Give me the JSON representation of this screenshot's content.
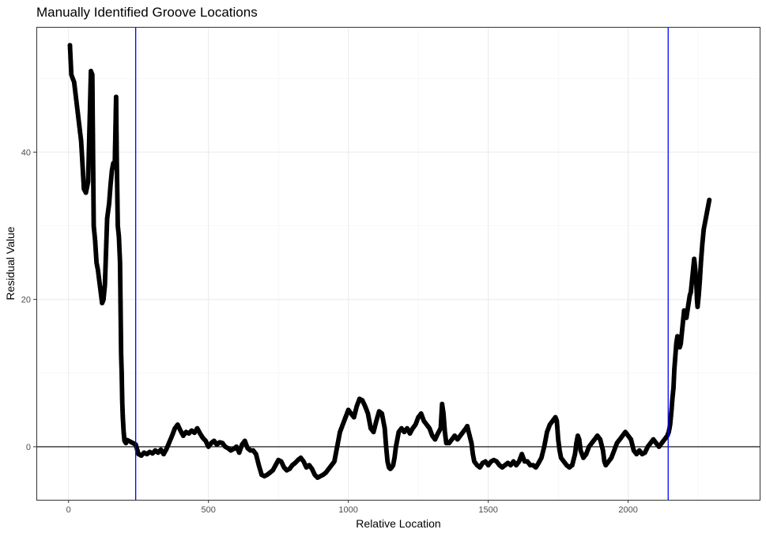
{
  "chart_data": {
    "type": "scatter",
    "title": "Manually Identified Groove Locations",
    "xlabel": "Relative Location",
    "ylabel": "Residual Value",
    "xlim": [
      -115,
      2470
    ],
    "ylim": [
      -7.2,
      57
    ],
    "x_ticks": [
      0,
      500,
      1000,
      1500,
      2000
    ],
    "y_ticks": [
      0,
      20,
      40
    ],
    "grid": true,
    "theme": "black-and-white",
    "point_color": "#000000",
    "vlines": [
      {
        "x": 240,
        "color": "#0000ff"
      },
      {
        "x": 2143,
        "color": "#0000ff"
      }
    ],
    "hlines": [
      {
        "y": 0,
        "color": "#000000"
      }
    ],
    "profile": [
      [
        5,
        54.5
      ],
      [
        10,
        50.5
      ],
      [
        20,
        49.5
      ],
      [
        45,
        41.5
      ],
      [
        55,
        35
      ],
      [
        62,
        34.5
      ],
      [
        70,
        36
      ],
      [
        80,
        51
      ],
      [
        85,
        50.5
      ],
      [
        90,
        30
      ],
      [
        95,
        28
      ],
      [
        100,
        25
      ],
      [
        105,
        24
      ],
      [
        110,
        22.5
      ],
      [
        115,
        21
      ],
      [
        120,
        19.5
      ],
      [
        125,
        20
      ],
      [
        130,
        22
      ],
      [
        138,
        31
      ],
      [
        145,
        33
      ],
      [
        150,
        35.5
      ],
      [
        155,
        37.5
      ],
      [
        160,
        38.5
      ],
      [
        165,
        38
      ],
      [
        170,
        47.5
      ],
      [
        172,
        40
      ],
      [
        176,
        30
      ],
      [
        180,
        28.5
      ],
      [
        184,
        25
      ],
      [
        188,
        12.5
      ],
      [
        190,
        10
      ],
      [
        192,
        6
      ],
      [
        194,
        4
      ],
      [
        197,
        2
      ],
      [
        200,
        0.8
      ],
      [
        205,
        0.5
      ],
      [
        210,
        0.9
      ],
      [
        220,
        0.7
      ],
      [
        230,
        0.5
      ],
      [
        240,
        0.3
      ],
      [
        250,
        -1.0
      ],
      [
        260,
        -1.2
      ],
      [
        270,
        -0.8
      ],
      [
        280,
        -1.0
      ],
      [
        290,
        -0.7
      ],
      [
        300,
        -0.9
      ],
      [
        310,
        -0.5
      ],
      [
        320,
        -0.8
      ],
      [
        330,
        -0.4
      ],
      [
        340,
        -1.0
      ],
      [
        350,
        -0.3
      ],
      [
        360,
        0.6
      ],
      [
        370,
        1.5
      ],
      [
        380,
        2.5
      ],
      [
        390,
        3.0
      ],
      [
        400,
        2.2
      ],
      [
        410,
        1.5
      ],
      [
        420,
        2.0
      ],
      [
        430,
        1.8
      ],
      [
        440,
        2.2
      ],
      [
        450,
        1.9
      ],
      [
        460,
        2.5
      ],
      [
        470,
        1.8
      ],
      [
        480,
        1.2
      ],
      [
        490,
        0.8
      ],
      [
        500,
        0.0
      ],
      [
        510,
        0.5
      ],
      [
        520,
        0.8
      ],
      [
        530,
        0.3
      ],
      [
        540,
        0.6
      ],
      [
        550,
        0.5
      ],
      [
        560,
        0.0
      ],
      [
        570,
        -0.2
      ],
      [
        580,
        -0.5
      ],
      [
        590,
        -0.3
      ],
      [
        600,
        0.0
      ],
      [
        610,
        -0.8
      ],
      [
        620,
        0.3
      ],
      [
        630,
        0.8
      ],
      [
        640,
        -0.2
      ],
      [
        650,
        -0.5
      ],
      [
        660,
        -0.5
      ],
      [
        670,
        -1.0
      ],
      [
        680,
        -2.5
      ],
      [
        690,
        -3.8
      ],
      [
        700,
        -4.0
      ],
      [
        710,
        -3.8
      ],
      [
        720,
        -3.5
      ],
      [
        730,
        -3.2
      ],
      [
        740,
        -2.5
      ],
      [
        750,
        -1.8
      ],
      [
        760,
        -2.0
      ],
      [
        770,
        -2.8
      ],
      [
        780,
        -3.2
      ],
      [
        790,
        -3.0
      ],
      [
        800,
        -2.5
      ],
      [
        810,
        -2.2
      ],
      [
        820,
        -1.8
      ],
      [
        830,
        -1.5
      ],
      [
        840,
        -2.0
      ],
      [
        850,
        -2.8
      ],
      [
        860,
        -2.5
      ],
      [
        870,
        -3.0
      ],
      [
        880,
        -3.8
      ],
      [
        890,
        -4.2
      ],
      [
        900,
        -4.0
      ],
      [
        910,
        -3.8
      ],
      [
        920,
        -3.5
      ],
      [
        930,
        -3.0
      ],
      [
        940,
        -2.5
      ],
      [
        950,
        -2.0
      ],
      [
        955,
        -1.0
      ],
      [
        960,
        0.0
      ],
      [
        965,
        1.0
      ],
      [
        970,
        2.0
      ],
      [
        975,
        2.5
      ],
      [
        980,
        3.0
      ],
      [
        985,
        3.5
      ],
      [
        990,
        4.0
      ],
      [
        995,
        4.5
      ],
      [
        1000,
        5.0
      ],
      [
        1010,
        4.5
      ],
      [
        1020,
        4.0
      ],
      [
        1030,
        5.5
      ],
      [
        1040,
        6.5
      ],
      [
        1050,
        6.3
      ],
      [
        1060,
        5.5
      ],
      [
        1070,
        4.5
      ],
      [
        1080,
        2.5
      ],
      [
        1090,
        2.0
      ],
      [
        1100,
        3.5
      ],
      [
        1110,
        4.8
      ],
      [
        1120,
        4.5
      ],
      [
        1130,
        2.5
      ],
      [
        1135,
        0.0
      ],
      [
        1140,
        -2.0
      ],
      [
        1145,
        -2.8
      ],
      [
        1150,
        -3.0
      ],
      [
        1155,
        -2.8
      ],
      [
        1160,
        -2.5
      ],
      [
        1165,
        -1.5
      ],
      [
        1170,
        0.0
      ],
      [
        1175,
        1.0
      ],
      [
        1180,
        2.0
      ],
      [
        1190,
        2.5
      ],
      [
        1200,
        2.0
      ],
      [
        1210,
        2.5
      ],
      [
        1220,
        1.8
      ],
      [
        1230,
        2.5
      ],
      [
        1240,
        3.0
      ],
      [
        1250,
        4.0
      ],
      [
        1260,
        4.5
      ],
      [
        1270,
        3.5
      ],
      [
        1280,
        3.0
      ],
      [
        1290,
        2.5
      ],
      [
        1300,
        1.5
      ],
      [
        1310,
        1.0
      ],
      [
        1320,
        1.8
      ],
      [
        1330,
        2.5
      ],
      [
        1335,
        5.8
      ],
      [
        1340,
        4.5
      ],
      [
        1345,
        2.0
      ],
      [
        1350,
        0.5
      ],
      [
        1360,
        0.5
      ],
      [
        1370,
        1.0
      ],
      [
        1380,
        1.5
      ],
      [
        1390,
        1.0
      ],
      [
        1400,
        1.5
      ],
      [
        1410,
        2.0
      ],
      [
        1420,
        2.5
      ],
      [
        1425,
        2.8
      ],
      [
        1430,
        2.0
      ],
      [
        1440,
        0.5
      ],
      [
        1445,
        -1.0
      ],
      [
        1450,
        -2.0
      ],
      [
        1460,
        -2.5
      ],
      [
        1470,
        -2.8
      ],
      [
        1480,
        -2.2
      ],
      [
        1490,
        -2.0
      ],
      [
        1500,
        -2.5
      ],
      [
        1510,
        -2.0
      ],
      [
        1520,
        -1.8
      ],
      [
        1530,
        -2.0
      ],
      [
        1540,
        -2.5
      ],
      [
        1550,
        -2.8
      ],
      [
        1560,
        -2.5
      ],
      [
        1570,
        -2.2
      ],
      [
        1580,
        -2.5
      ],
      [
        1590,
        -2.0
      ],
      [
        1600,
        -2.5
      ],
      [
        1610,
        -2.0
      ],
      [
        1620,
        -1.0
      ],
      [
        1630,
        -2.0
      ],
      [
        1640,
        -2.0
      ],
      [
        1650,
        -2.5
      ],
      [
        1660,
        -2.5
      ],
      [
        1670,
        -2.8
      ],
      [
        1680,
        -2.2
      ],
      [
        1690,
        -1.5
      ],
      [
        1700,
        0.0
      ],
      [
        1710,
        2.0
      ],
      [
        1720,
        3.0
      ],
      [
        1730,
        3.5
      ],
      [
        1740,
        4.0
      ],
      [
        1745,
        3.5
      ],
      [
        1750,
        1.0
      ],
      [
        1755,
        -0.5
      ],
      [
        1760,
        -1.5
      ],
      [
        1770,
        -2.0
      ],
      [
        1780,
        -2.5
      ],
      [
        1790,
        -2.8
      ],
      [
        1800,
        -2.5
      ],
      [
        1810,
        -1.0
      ],
      [
        1815,
        0.5
      ],
      [
        1820,
        1.5
      ],
      [
        1825,
        1.0
      ],
      [
        1830,
        -0.5
      ],
      [
        1840,
        -1.5
      ],
      [
        1850,
        -1.0
      ],
      [
        1860,
        0.0
      ],
      [
        1870,
        0.5
      ],
      [
        1880,
        1.0
      ],
      [
        1890,
        1.5
      ],
      [
        1900,
        1.0
      ],
      [
        1910,
        -0.5
      ],
      [
        1915,
        -2.0
      ],
      [
        1920,
        -2.5
      ],
      [
        1930,
        -2.0
      ],
      [
        1940,
        -1.5
      ],
      [
        1950,
        -0.5
      ],
      [
        1960,
        0.5
      ],
      [
        1970,
        1.0
      ],
      [
        1980,
        1.5
      ],
      [
        1990,
        2.0
      ],
      [
        2000,
        1.5
      ],
      [
        2010,
        1.0
      ],
      [
        2020,
        -0.5
      ],
      [
        2030,
        -1.0
      ],
      [
        2040,
        -0.5
      ],
      [
        2050,
        -1.0
      ],
      [
        2060,
        -0.8
      ],
      [
        2070,
        0.0
      ],
      [
        2080,
        0.5
      ],
      [
        2090,
        1.0
      ],
      [
        2100,
        0.5
      ],
      [
        2110,
        0.0
      ],
      [
        2120,
        0.5
      ],
      [
        2130,
        1.0
      ],
      [
        2140,
        1.5
      ],
      [
        2145,
        2.0
      ],
      [
        2150,
        3.0
      ],
      [
        2155,
        5.0
      ],
      [
        2158,
        6.5
      ],
      [
        2162,
        8.0
      ],
      [
        2165,
        10.5
      ],
      [
        2168,
        12.0
      ],
      [
        2172,
        14.0
      ],
      [
        2176,
        15.0
      ],
      [
        2180,
        14.5
      ],
      [
        2184,
        13.5
      ],
      [
        2188,
        14.0
      ],
      [
        2192,
        15.5
      ],
      [
        2196,
        17.0
      ],
      [
        2200,
        18.5
      ],
      [
        2204,
        18.0
      ],
      [
        2208,
        17.5
      ],
      [
        2212,
        18.5
      ],
      [
        2216,
        19.5
      ],
      [
        2220,
        20.5
      ],
      [
        2224,
        21.0
      ],
      [
        2228,
        22.5
      ],
      [
        2232,
        24.0
      ],
      [
        2236,
        25.5
      ],
      [
        2240,
        24.0
      ],
      [
        2244,
        22.0
      ],
      [
        2246,
        20.0
      ],
      [
        2248,
        19.0
      ],
      [
        2252,
        20.5
      ],
      [
        2256,
        22.5
      ],
      [
        2260,
        25.0
      ],
      [
        2265,
        27.5
      ],
      [
        2270,
        29.5
      ],
      [
        2275,
        30.5
      ],
      [
        2280,
        31.5
      ],
      [
        2285,
        32.5
      ],
      [
        2290,
        33.5
      ]
    ]
  }
}
